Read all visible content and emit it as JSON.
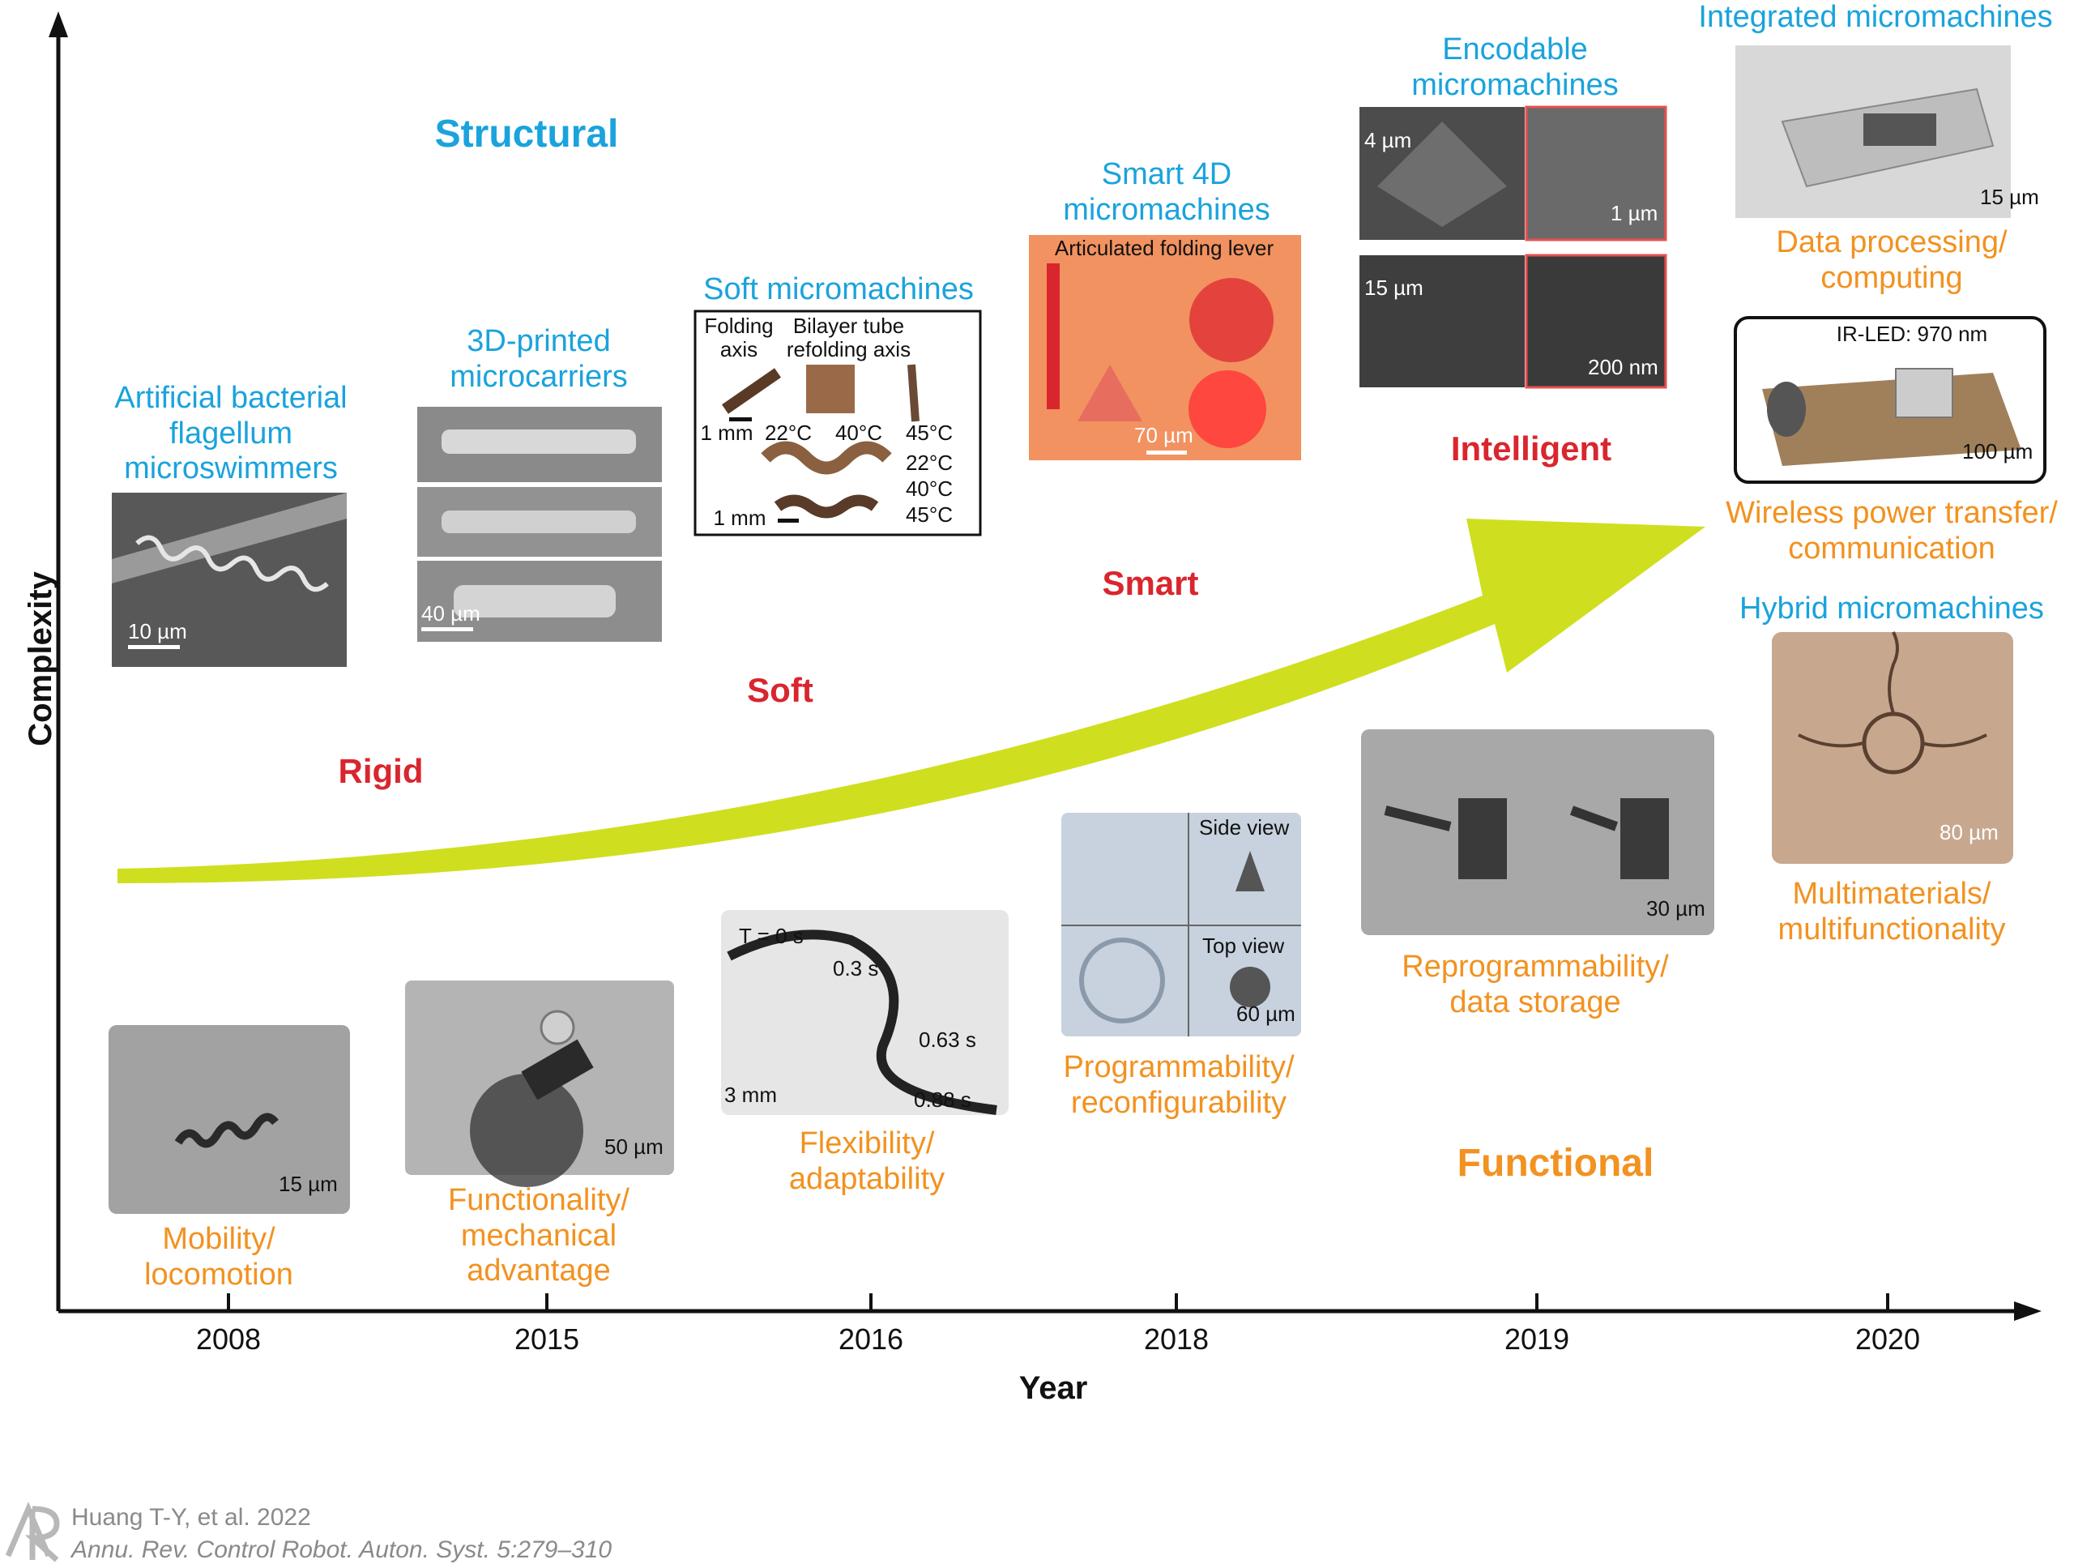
{
  "axes": {
    "y_title": "Complexity",
    "x_title": "Year",
    "years": [
      "2008",
      "2015",
      "2016",
      "2018",
      "2019",
      "2020"
    ]
  },
  "categories": {
    "structural": "Structural",
    "functional": "Functional",
    "rigid": "Rigid",
    "soft": "Soft",
    "smart": "Smart",
    "intelligent": "Intelligent"
  },
  "top_labels": {
    "abf": "Artificial bacterial\nflagellum\nmicroswimmers",
    "microcarriers": "3D-printed\nmicrocarriers",
    "soft": "Soft micromachines",
    "smart4d": "Smart 4D\nmicromachines",
    "encodable": "Encodable\nmicromachines",
    "integrated": "Integrated micromachines",
    "hybrid": "Hybrid micromachines"
  },
  "bottom_labels": {
    "mobility": "Mobility/\nlocomotion",
    "functionality": "Functionality/\nmechanical\nadvantage",
    "flexibility": "Flexibility/\nadaptability",
    "programmability": "Programmability/\nreconfigurability",
    "reprogrammability": "Reprogrammability/\ndata storage",
    "data_processing": "Data processing/\ncomputing",
    "wireless": "Wireless power transfer/\ncommunication",
    "multimaterials": "Multimaterials/\nmultifunctionality"
  },
  "panel_text": {
    "abf_scale": "10 µm",
    "carrier_scale": "40 µm",
    "soft_folding": "Folding\naxis",
    "soft_bilayer": "Bilayer tube\nrefolding axis",
    "soft_1mm_a": "1 mm",
    "soft_22": "22°C",
    "soft_40": "40°C",
    "soft_45": "45°C",
    "soft_22b": "22°C",
    "soft_40b": "40°C",
    "soft_45b": "45°C",
    "soft_1mm_b": "1 mm",
    "smart_lever": "Articulated folding lever",
    "smart_scale": "70 µm",
    "enc_4": "4 µm",
    "enc_1": "1 µm",
    "enc_15": "15 µm",
    "enc_200": "200 nm",
    "integrated_scale": "15 µm",
    "ir_led": "IR-LED: 970 nm",
    "wireless_scale": "100 µm",
    "hybrid_scale": "80 µm",
    "mob_scale": "15 µm",
    "func_scale": "50 µm",
    "flex_t0": "T = 0 s",
    "flex_03": "0.3 s",
    "flex_063": "0.63 s",
    "flex_088": "0.88 s",
    "flex_scale": "3 mm",
    "prog_side": "Side view",
    "prog_top": "Top view",
    "prog_scale": "60 µm",
    "reprog_scale": "30 µm"
  },
  "citation": {
    "line1": "Huang T-Y, et al. 2022",
    "line2": "Annu. Rev. Control Robot. Auton. Syst. 5:279–310"
  },
  "colors": {
    "blue": "#1aa3dc",
    "orange": "#f29220",
    "red": "#d9262e",
    "arrow": "#cfdf1f"
  }
}
